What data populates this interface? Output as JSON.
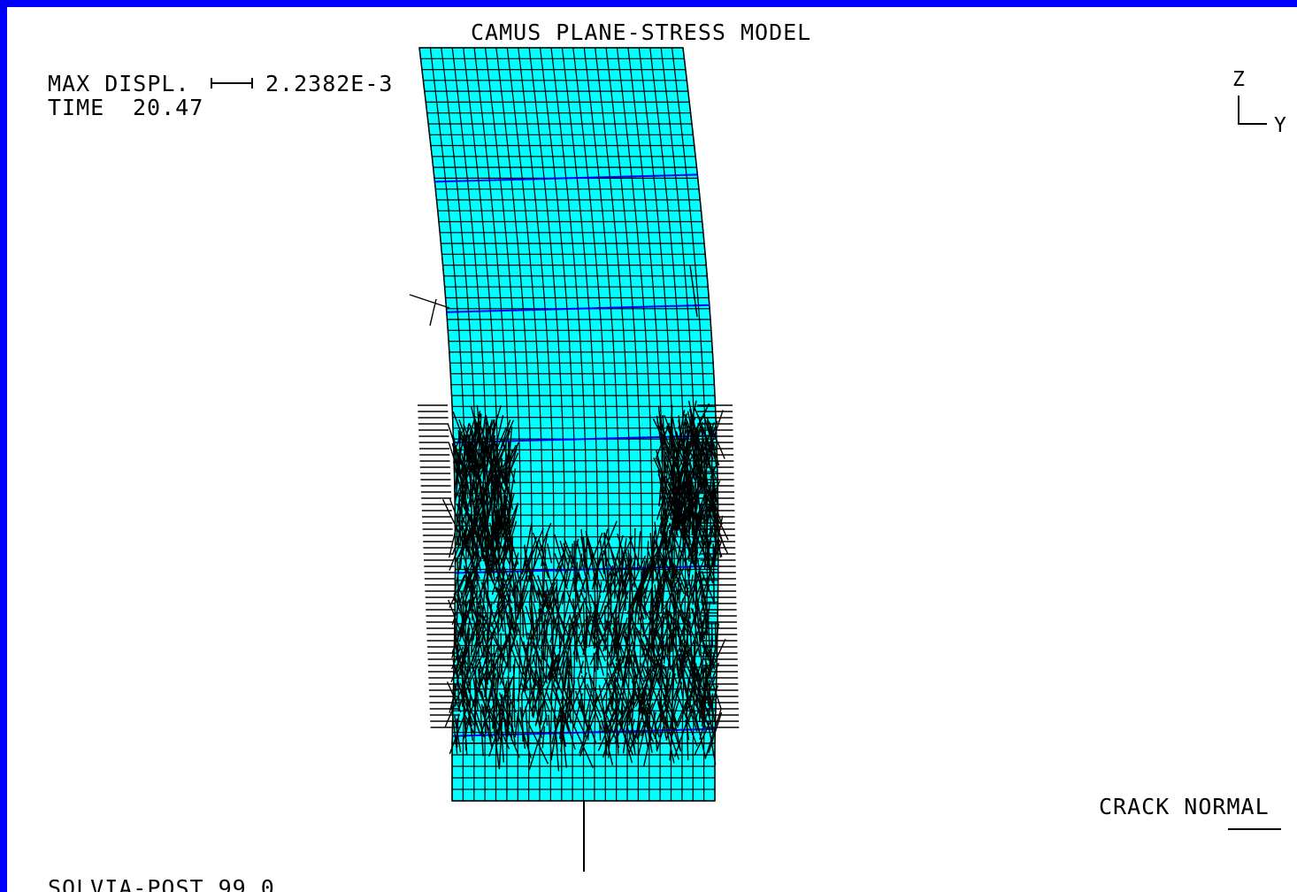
{
  "plot": {
    "title": "CAMUS PLANE-STRESS MODEL",
    "max_displ_label": "MAX DISPL.",
    "max_displ_value": "2.2382E-3",
    "time_label": "TIME",
    "time_value": "20.47",
    "axis_vertical": "Z",
    "axis_horizontal": "Y",
    "legend_label": "CRACK NORMAL",
    "footer": "SOLVIA-POST 99.0"
  },
  "colors": {
    "border": "#0000ff",
    "background": "#ffffff",
    "mesh_fill": "#00ffff",
    "mesh_lines": "#000000",
    "level_lines": "#0000ff",
    "crack_normals": "#000000"
  }
}
